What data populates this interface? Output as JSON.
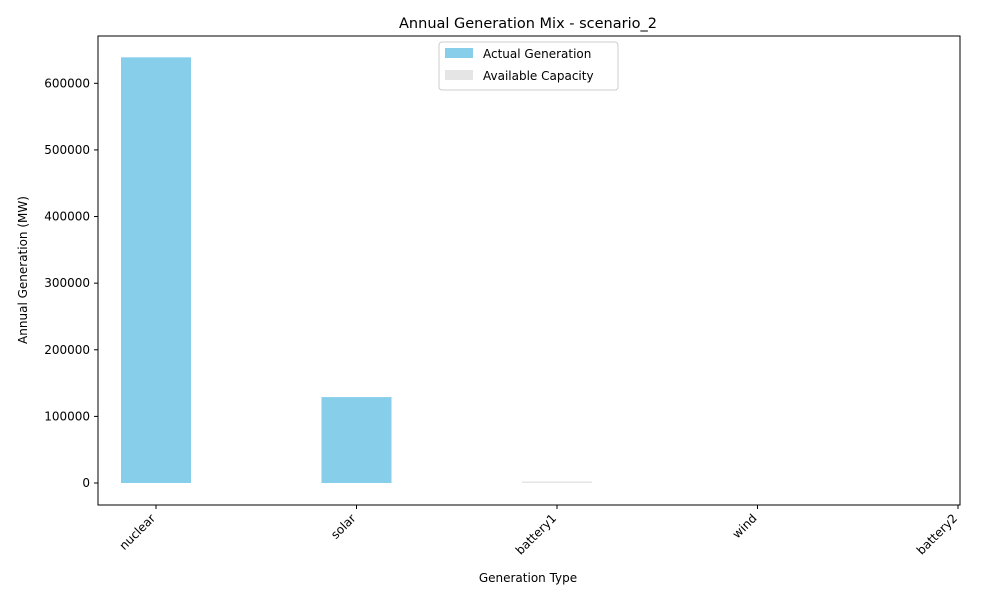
{
  "chart_data": {
    "type": "bar",
    "title": "Annual Generation Mix - scenario_2",
    "xlabel": "Generation Type",
    "ylabel": "Annual Generation (MW)",
    "categories": [
      "nuclear",
      "solar",
      "battery1",
      "wind",
      "battery2"
    ],
    "series": [
      {
        "name": "Actual Generation",
        "color": "#87ceeb",
        "values": [
          639000,
          129000,
          0,
          0,
          0
        ]
      },
      {
        "name": "Available Capacity",
        "color": "#e5e5e5",
        "values": [
          0,
          0,
          1500,
          0,
          0
        ]
      }
    ],
    "ylim": [
      -33000,
      671000
    ],
    "yticks": [
      0,
      100000,
      200000,
      300000,
      400000,
      500000,
      600000
    ],
    "grid": false,
    "legend": "upper center"
  }
}
